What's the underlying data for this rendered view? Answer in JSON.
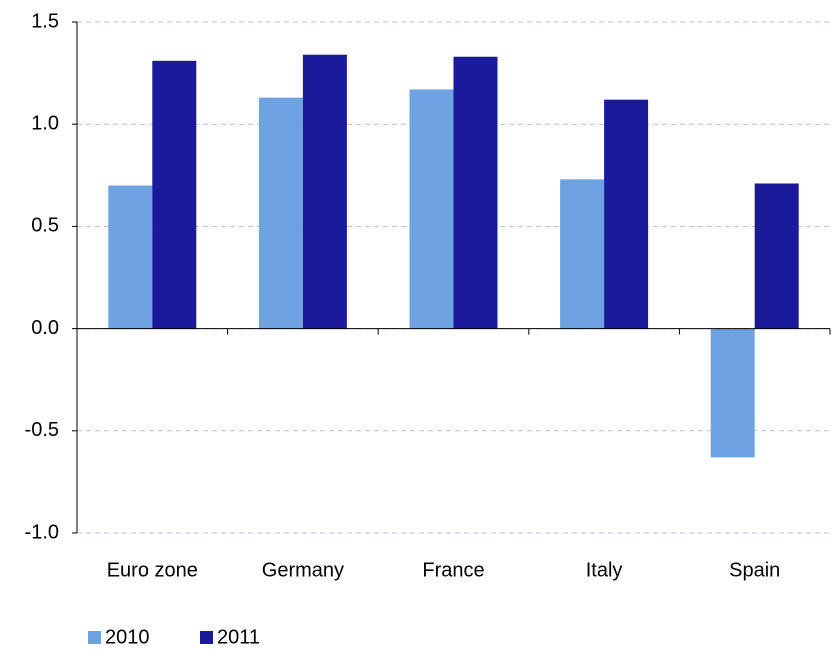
{
  "chart_data": {
    "type": "bar",
    "categories": [
      "Euro zone",
      "Germany",
      "France",
      "Italy",
      "Spain"
    ],
    "series": [
      {
        "name": "2010",
        "color": "#6ca3e0",
        "values": [
          0.7,
          1.13,
          1.17,
          0.73,
          -0.63
        ]
      },
      {
        "name": "2011",
        "color": "#1a1a9a",
        "values": [
          1.31,
          1.34,
          1.33,
          1.12,
          0.71
        ]
      }
    ],
    "ylim": [
      -1.0,
      1.5
    ],
    "yticks": [
      {
        "value": -1.0,
        "label": "-1.0"
      },
      -0.5,
      {
        "value": 0.0,
        "label": "0.0"
      },
      0.5,
      {
        "value": 1.0,
        "label": "1.0"
      },
      1.5
    ],
    "grid": true,
    "legend": "bottom-left"
  }
}
